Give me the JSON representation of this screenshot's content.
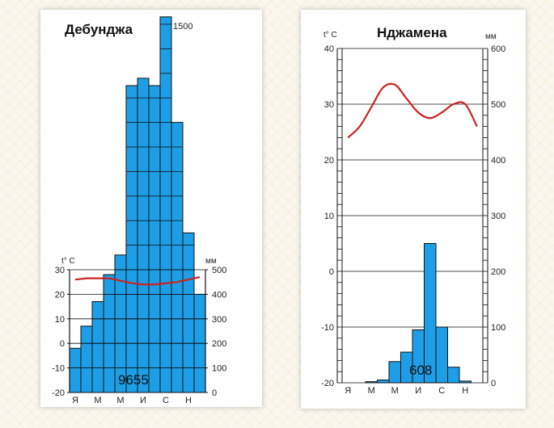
{
  "chart_data": [
    {
      "type": "bar",
      "title": "Дебунджа",
      "temp_unit_label": "t° C",
      "precip_unit_label": "мм",
      "months": [
        "Я",
        "",
        "М",
        "",
        "М",
        "",
        "И",
        "",
        "С",
        "",
        "Н",
        ""
      ],
      "temp_ticks": [
        "30",
        "20",
        "10",
        "0",
        "-10",
        "-20"
      ],
      "temp_ylim": [
        -20,
        30
      ],
      "precip_ticks": [
        "500",
        "400",
        "300",
        "200",
        "100",
        "0"
      ],
      "precip_ylim": [
        0,
        500
      ],
      "precip_top_label": "1500",
      "total_precip": "9655",
      "series": [
        {
          "name": "precipitation",
          "color": "#1e9ee6",
          "values": [
            180,
            270,
            370,
            480,
            560,
            1250,
            1280,
            1250,
            1530,
            1100,
            650,
            400
          ]
        },
        {
          "name": "temperature",
          "color": "#cc2222",
          "values": [
            26,
            26.5,
            26.5,
            26.5,
            25.5,
            24.5,
            24,
            24,
            24.5,
            25,
            26,
            27
          ]
        }
      ]
    },
    {
      "type": "bar",
      "title": "Нджамена",
      "temp_unit_label": "t° C",
      "precip_unit_label": "мм",
      "months": [
        "Я",
        "",
        "М",
        "",
        "М",
        "",
        "И",
        "",
        "С",
        "",
        "Н",
        ""
      ],
      "temp_ticks": [
        "40",
        "30",
        "20",
        "10",
        "0",
        "-10",
        "-20"
      ],
      "temp_ylim": [
        -20,
        40
      ],
      "precip_ticks": [
        "600",
        "500",
        "400",
        "300",
        "200",
        "100",
        "0"
      ],
      "precip_ylim": [
        0,
        600
      ],
      "total_precip": "608",
      "series": [
        {
          "name": "precipitation",
          "color": "#1e9ee6",
          "values": [
            0,
            0,
            2,
            5,
            38,
            55,
            95,
            250,
            100,
            28,
            3,
            0
          ]
        },
        {
          "name": "temperature",
          "color": "#cc2222",
          "values": [
            24,
            26,
            29.5,
            33,
            33.5,
            31,
            28.5,
            27.5,
            28.5,
            30,
            30,
            26
          ]
        }
      ]
    }
  ]
}
